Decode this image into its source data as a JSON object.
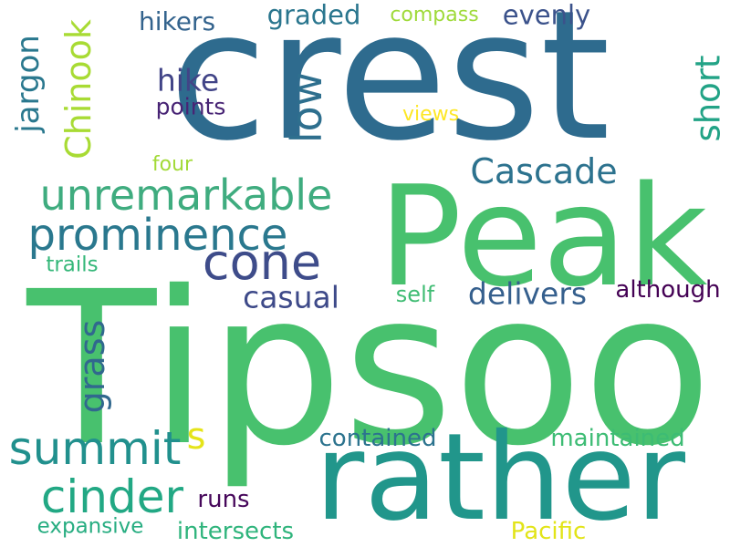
{
  "colors": {
    "background": "#ffffff",
    "dark_purple": "#440154",
    "indigo": "#3b528b",
    "blue": "#2c6d8e",
    "teal": "#21908d",
    "green": "#3fbc73",
    "light_green": "#5dc963",
    "lime": "#aadc32",
    "yellow": "#fde725"
  },
  "words": [
    {
      "text": "Tipsoo",
      "color": "#48c16e"
    },
    {
      "text": "crest",
      "color": "#2e6b8e"
    },
    {
      "text": "Peak",
      "color": "#48c16e"
    },
    {
      "text": "rather",
      "color": "#21968b"
    },
    {
      "text": "cone",
      "color": "#3e4c8a"
    },
    {
      "text": "prominence",
      "color": "#2a788e"
    },
    {
      "text": "unremarkable",
      "color": "#3fac7f"
    },
    {
      "text": "summit",
      "color": "#21908d"
    },
    {
      "text": "cinder",
      "color": "#22a884"
    },
    {
      "text": "Cascade",
      "color": "#2c728e"
    },
    {
      "text": "Chinook",
      "color": "#a8db34"
    },
    {
      "text": "jargon",
      "color": "#2a788e"
    },
    {
      "text": "low",
      "color": "#2e6f8e"
    },
    {
      "text": "short",
      "color": "#22a386"
    },
    {
      "text": "grass",
      "color": "#31688e"
    },
    {
      "text": "hikers",
      "color": "#33638d"
    },
    {
      "text": "graded",
      "color": "#2a768e"
    },
    {
      "text": "evenly",
      "color": "#3b528b"
    },
    {
      "text": "compass",
      "color": "#9fda3a"
    },
    {
      "text": "hike",
      "color": "#414487"
    },
    {
      "text": "points",
      "color": "#482475"
    },
    {
      "text": "views",
      "color": "#fde725"
    },
    {
      "text": "four",
      "color": "#a2da37"
    },
    {
      "text": "trails",
      "color": "#35b779"
    },
    {
      "text": "casual",
      "color": "#3e4a89"
    },
    {
      "text": "self",
      "color": "#3fbc73"
    },
    {
      "text": "delivers",
      "color": "#355f8d"
    },
    {
      "text": "although",
      "color": "#440154"
    },
    {
      "text": "s",
      "color": "#e5e419"
    },
    {
      "text": "contained",
      "color": "#2c738e"
    },
    {
      "text": "maintained",
      "color": "#3dbc74"
    },
    {
      "text": "runs",
      "color": "#46075a"
    },
    {
      "text": "expansive",
      "color": "#27ad81"
    },
    {
      "text": "intersects",
      "color": "#2fb47c"
    },
    {
      "text": "Pacific",
      "color": "#e2e418"
    }
  ]
}
